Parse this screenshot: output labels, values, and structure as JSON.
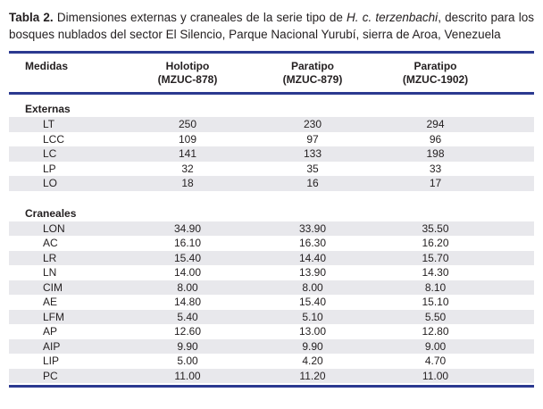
{
  "caption": {
    "label": "Tabla 2.",
    "before_italic": " Dimensiones externas y craneales de la serie tipo de ",
    "italic": "H. c. terzenbachi",
    "after_italic": ", descrito para los bosques nublados del sector El Silencio, Parque Nacional Yurubí, sierra de Aroa, Venezuela"
  },
  "colors": {
    "rule_navy": "#2b3990",
    "row_shade": "#e8e8ec",
    "text": "#231f20"
  },
  "table": {
    "columns": [
      {
        "label": "Medidas",
        "sub": ""
      },
      {
        "label": "Holotipo",
        "sub": "(MZUC-878)"
      },
      {
        "label": "Paratipo",
        "sub": "(MZUC-879)"
      },
      {
        "label": "Paratipo",
        "sub": "(MZUC-1902)"
      }
    ],
    "sections": [
      {
        "name": "Externas",
        "rows": [
          {
            "measure": "LT",
            "values": [
              "250",
              "230",
              "294"
            ]
          },
          {
            "measure": "LCC",
            "values": [
              "109",
              "97",
              "96"
            ]
          },
          {
            "measure": "LC",
            "values": [
              "141",
              "133",
              "198"
            ]
          },
          {
            "measure": "LP",
            "values": [
              "32",
              "35",
              "33"
            ]
          },
          {
            "measure": "LO",
            "values": [
              "18",
              "16",
              "17"
            ]
          }
        ]
      },
      {
        "name": "Craneales",
        "rows": [
          {
            "measure": "LON",
            "values": [
              "34.90",
              "33.90",
              "35.50"
            ]
          },
          {
            "measure": "AC",
            "values": [
              "16.10",
              "16.30",
              "16.20"
            ]
          },
          {
            "measure": "LR",
            "values": [
              "15.40",
              "14.40",
              "15.70"
            ]
          },
          {
            "measure": "LN",
            "values": [
              "14.00",
              "13.90",
              "14.30"
            ]
          },
          {
            "measure": "CIM",
            "values": [
              "8.00",
              "8.00",
              "8.10"
            ]
          },
          {
            "measure": "AE",
            "values": [
              "14.80",
              "15.40",
              "15.10"
            ]
          },
          {
            "measure": "LFM",
            "values": [
              "5.40",
              "5.10",
              "5.50"
            ]
          },
          {
            "measure": "AP",
            "values": [
              "12.60",
              "13.00",
              "12.80"
            ]
          },
          {
            "measure": "AIP",
            "values": [
              "9.90",
              "9.90",
              "9.00"
            ]
          },
          {
            "measure": "LIP",
            "values": [
              "5.00",
              "4.20",
              "4.70"
            ]
          },
          {
            "measure": "PC",
            "values": [
              "11.00",
              "11.20",
              "11.00"
            ]
          }
        ]
      }
    ]
  }
}
